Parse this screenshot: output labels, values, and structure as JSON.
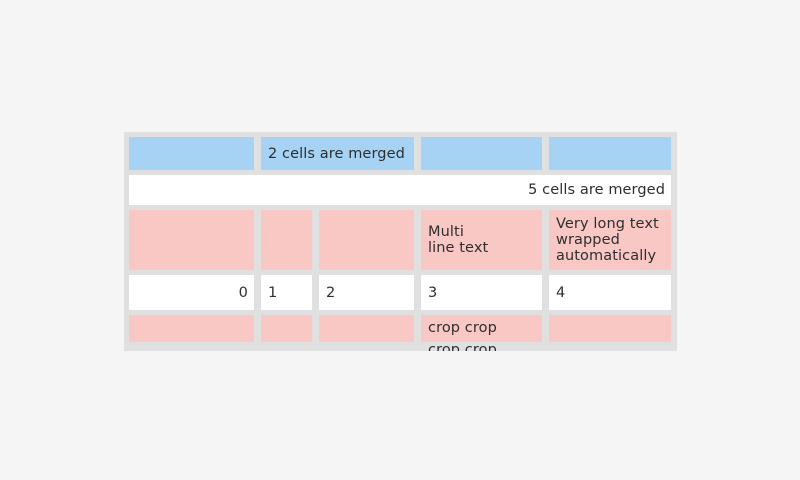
{
  "colors": {
    "page_background": "#f5f5f5",
    "table_background": "#e0e0e0",
    "cell_blue": "#a6d3f3",
    "cell_pink": "#f9c8c4",
    "cell_white": "#ffffff",
    "text": "#2e2e2e"
  },
  "table": {
    "rows": [
      {
        "cells": [
          {
            "text": ""
          },
          {
            "text": "2 cells are merged",
            "colspan": 2
          },
          {
            "text": ""
          },
          {
            "text": ""
          }
        ]
      },
      {
        "cells": [
          {
            "text": "5 cells are merged",
            "colspan": 5,
            "align": "right"
          }
        ]
      },
      {
        "cells": [
          {
            "text": ""
          },
          {
            "text": ""
          },
          {
            "text": ""
          },
          {
            "text": "Multi\nline text"
          },
          {
            "text": "Very long text wrapped automatically"
          }
        ]
      },
      {
        "cells": [
          {
            "text": "0",
            "align": "right"
          },
          {
            "text": "1"
          },
          {
            "text": "2"
          },
          {
            "text": "3"
          },
          {
            "text": "4"
          }
        ]
      },
      {
        "cells": [
          {
            "text": ""
          },
          {
            "text": ""
          },
          {
            "text": ""
          },
          {
            "text": "crop crop\ncrop crop",
            "cropped": true
          },
          {
            "text": ""
          }
        ]
      }
    ]
  }
}
